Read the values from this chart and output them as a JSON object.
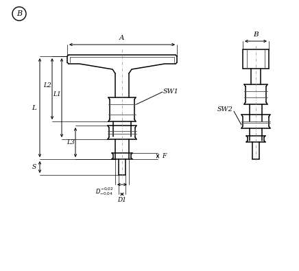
{
  "bg_color": "#ffffff",
  "line_color": "#000000",
  "circle_label": "B",
  "labels": {
    "A": "A",
    "B": "B",
    "L": "L",
    "L1": "L1",
    "L2": "L2",
    "L3": "L3",
    "S": "S",
    "F": "F",
    "SW1": "SW1",
    "SW2": "SW2",
    "D_tol": "D",
    "D1": "D1"
  },
  "figsize": [
    4.36,
    3.95
  ],
  "dpi": 100
}
